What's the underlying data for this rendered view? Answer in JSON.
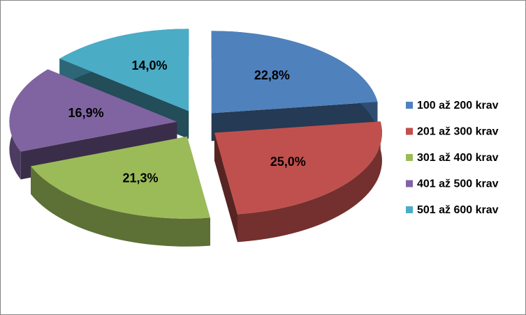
{
  "chart_data": {
    "type": "pie3d",
    "categories": [
      "100 až 200 krav",
      "201 až 300 krav",
      "301 až 400 krav",
      "401 až 500 krav",
      "501 až 600 krav"
    ],
    "values": [
      22.8,
      25.0,
      21.3,
      16.9,
      14.0
    ],
    "value_labels": [
      "22,8%",
      "25,0%",
      "21,3%",
      "16,9%",
      "14,0%"
    ],
    "colors": [
      "#4f81bd",
      "#c0504d",
      "#9bbb59",
      "#8064a2",
      "#4bacc6"
    ],
    "legend": "right"
  }
}
